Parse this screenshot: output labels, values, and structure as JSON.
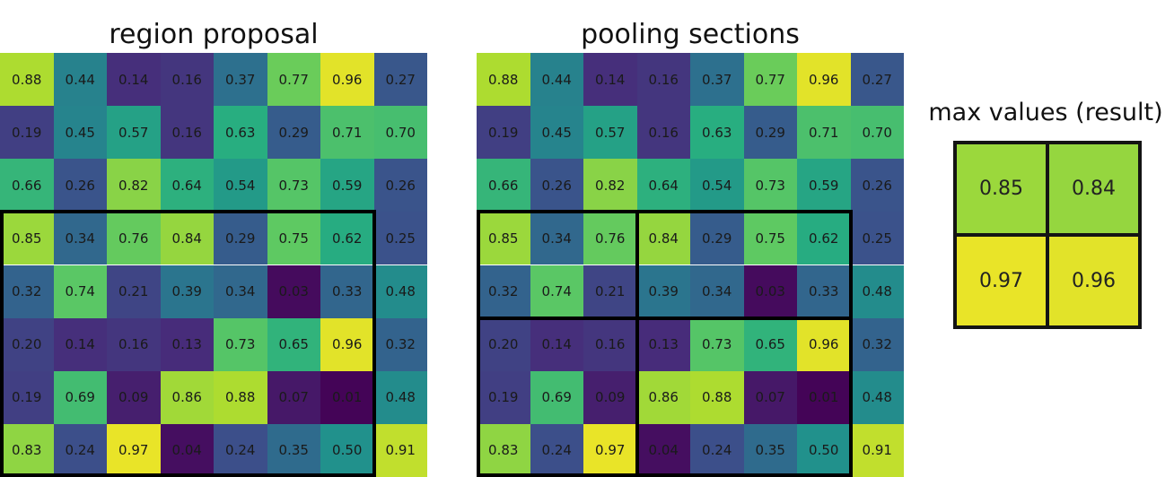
{
  "titles": {
    "region": "region proposal",
    "pooling": "pooling sections",
    "result": "max values (result)"
  },
  "colors": {
    "border": "#000000",
    "palette": "viridis"
  },
  "matrix": [
    [
      "0.88",
      "0.44",
      "0.14",
      "0.16",
      "0.37",
      "0.77",
      "0.96",
      "0.27"
    ],
    [
      "0.19",
      "0.45",
      "0.57",
      "0.16",
      "0.63",
      "0.29",
      "0.71",
      "0.70"
    ],
    [
      "0.66",
      "0.26",
      "0.82",
      "0.64",
      "0.54",
      "0.73",
      "0.59",
      "0.26"
    ],
    [
      "0.85",
      "0.34",
      "0.76",
      "0.84",
      "0.29",
      "0.75",
      "0.62",
      "0.25"
    ],
    [
      "0.32",
      "0.74",
      "0.21",
      "0.39",
      "0.34",
      "0.03",
      "0.33",
      "0.48"
    ],
    [
      "0.20",
      "0.14",
      "0.16",
      "0.13",
      "0.73",
      "0.65",
      "0.96",
      "0.32"
    ],
    [
      "0.19",
      "0.69",
      "0.09",
      "0.86",
      "0.88",
      "0.07",
      "0.01",
      "0.48"
    ],
    [
      "0.83",
      "0.24",
      "0.97",
      "0.04",
      "0.24",
      "0.35",
      "0.50",
      "0.91"
    ]
  ],
  "region": {
    "row_start": 3,
    "col_start": 0,
    "rows": 5,
    "cols": 7
  },
  "pooling": {
    "row_split": 2,
    "col_split": 3
  },
  "result": [
    [
      "0.85",
      "0.84"
    ],
    [
      "0.97",
      "0.96"
    ]
  ]
}
